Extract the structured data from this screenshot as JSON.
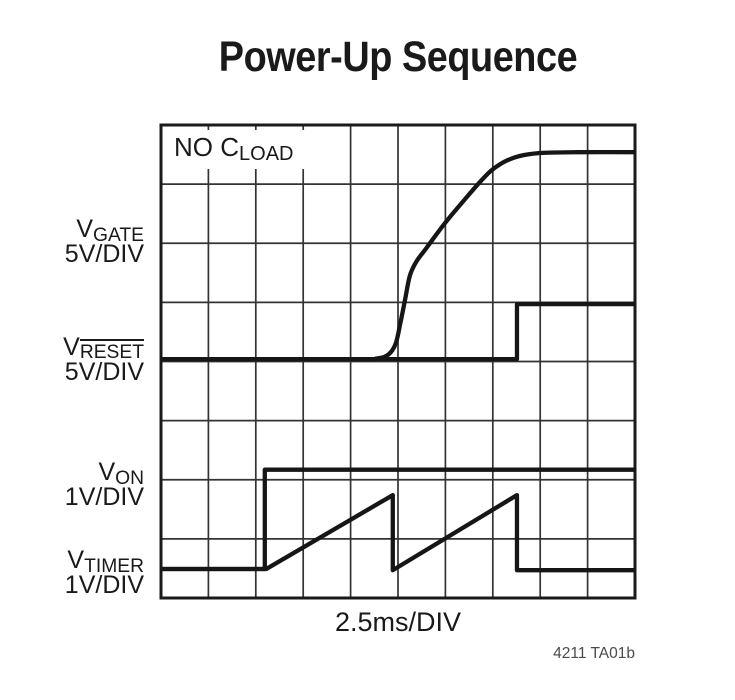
{
  "title": "Power-Up Sequence",
  "annotation": {
    "main": "NO C",
    "sub": "LOAD"
  },
  "trace_labels": [
    {
      "main": "V",
      "sub": "GATE",
      "overline": false,
      "scale": "5V/DIV"
    },
    {
      "main": "V",
      "sub": "RESET",
      "overline": true,
      "scale": "5V/DIV"
    },
    {
      "main": "V",
      "sub": "ON",
      "overline": false,
      "scale": "1V/DIV"
    },
    {
      "main": "V",
      "sub": "TIMER",
      "overline": false,
      "scale": "1V/DIV"
    }
  ],
  "x_axis_label": "2.5ms/DIV",
  "figure_note": "4211 TA01b",
  "colors": {
    "background": "#ffffff",
    "trace": "#161616",
    "grid": "#333333",
    "border": "#1a1a1a",
    "text": "#1a1a1a"
  },
  "chart_data": {
    "type": "line",
    "title": "Power-Up Sequence",
    "xlabel": "2.5ms/DIV",
    "annotation": "NO CLOAD",
    "x_divisions": 10,
    "y_divisions": 8,
    "time_per_div": "2.5ms",
    "y_units": "graticule divisions (bottom = 0)",
    "grid": true,
    "series": [
      {
        "name": "V_GATE",
        "volts_per_div": "5V/DIV",
        "smooth": true,
        "points": [
          [
            0,
            4.04
          ],
          [
            4.0,
            4.04
          ],
          [
            4.55,
            4.05
          ],
          [
            4.8,
            4.12
          ],
          [
            4.95,
            4.3
          ],
          [
            5.05,
            4.65
          ],
          [
            5.15,
            5.05
          ],
          [
            5.25,
            5.45
          ],
          [
            5.38,
            5.68
          ],
          [
            5.6,
            5.92
          ],
          [
            6.0,
            6.35
          ],
          [
            6.45,
            6.78
          ],
          [
            6.78,
            7.08
          ],
          [
            7.0,
            7.25
          ],
          [
            7.3,
            7.4
          ],
          [
            7.65,
            7.49
          ],
          [
            8.1,
            7.53
          ],
          [
            8.8,
            7.54
          ],
          [
            10,
            7.54
          ]
        ]
      },
      {
        "name": "V_RESET",
        "volts_per_div": "5V/DIV",
        "smooth": false,
        "points": [
          [
            0,
            4.04
          ],
          [
            7.51,
            4.04
          ],
          [
            7.51,
            4.97
          ],
          [
            10,
            4.97
          ]
        ]
      },
      {
        "name": "V_ON",
        "volts_per_div": "1V/DIV",
        "smooth": false,
        "points": [
          [
            0,
            0.49
          ],
          [
            2.19,
            0.49
          ],
          [
            2.19,
            2.17
          ],
          [
            10,
            2.17
          ]
        ]
      },
      {
        "name": "V_TIMER",
        "volts_per_div": "1V/DIV",
        "smooth": false,
        "points": [
          [
            0,
            0.49
          ],
          [
            2.22,
            0.49
          ],
          [
            4.89,
            1.74
          ],
          [
            4.89,
            0.47
          ],
          [
            7.51,
            1.74
          ],
          [
            7.51,
            0.47
          ],
          [
            10,
            0.47
          ]
        ]
      }
    ]
  }
}
